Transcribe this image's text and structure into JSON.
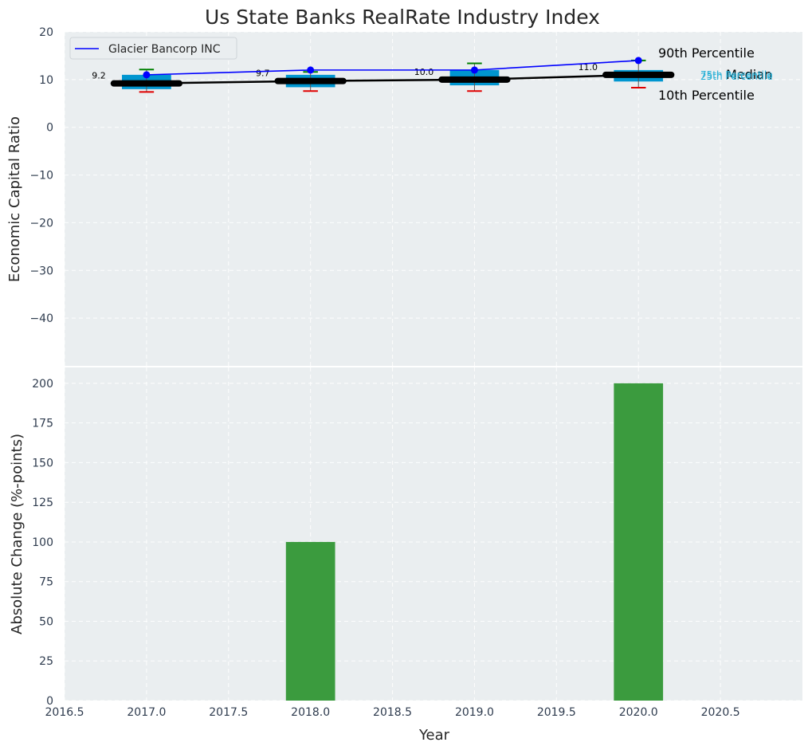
{
  "colors": {
    "panel_bg": "#eaeef0",
    "grid": "#ffffff",
    "box": "#0096d0",
    "median_line": "#000000",
    "glacier": "#0000ff",
    "whisker_high": "#008000",
    "whisker_low": "#e00000",
    "bars": "#3b9b3e",
    "iqr_label": "#27b0d6",
    "tick_text": "#2e3b4e",
    "title_text": "#262626"
  },
  "chart_data": [
    {
      "type": "box",
      "title": "Us State Banks RealRate Industry Index",
      "xlabel": "",
      "ylabel": "Economic Capital Ratio",
      "xlim": [
        2016.5,
        2021.0
      ],
      "ylim": [
        -50,
        20
      ],
      "yticks": [
        20,
        10,
        0,
        -10,
        -20,
        -30,
        -40
      ],
      "ytick_labels": [
        "20",
        "10",
        "0",
        "−10",
        "−20",
        "−30",
        "−40"
      ],
      "years": [
        2017,
        2018,
        2019,
        2020
      ],
      "percentile_10": [
        7.4,
        7.6,
        7.6,
        8.3
      ],
      "percentile_25": [
        8.0,
        8.4,
        8.8,
        9.6
      ],
      "median": [
        9.2,
        9.7,
        10.0,
        11.0
      ],
      "percentile_75": [
        11.0,
        11.0,
        12.0,
        12.0
      ],
      "percentile_90": [
        12.1,
        11.6,
        13.4,
        14.0
      ],
      "median_labels": [
        "9.2",
        "9.7",
        "10.0",
        "11.0"
      ],
      "series": [
        {
          "name": "Glacier Bancorp INC",
          "x": [
            2017,
            2018,
            2019,
            2020
          ],
          "values": [
            11.0,
            12.0,
            12.0,
            14.0
          ]
        }
      ],
      "legend": {
        "position": "upper-left",
        "entries": [
          "Glacier Bancorp INC"
        ]
      },
      "annotations": {
        "p90": "90th Percentile",
        "median": "Median",
        "p10": "10th Percentile",
        "p75": "75th Percentile",
        "p25": "25th Percentile"
      },
      "grid": true
    },
    {
      "type": "bar",
      "xlabel": "Year",
      "ylabel": "Absolute Change (%-points)",
      "xlim": [
        2016.5,
        2021.0
      ],
      "ylim": [
        0,
        210
      ],
      "yticks": [
        0,
        25,
        50,
        75,
        100,
        125,
        150,
        175,
        200
      ],
      "xticks": [
        2016.5,
        2017.0,
        2017.5,
        2018.0,
        2018.5,
        2019.0,
        2019.5,
        2020.0,
        2020.5
      ],
      "xtick_labels": [
        "2016.5",
        "2017.0",
        "2017.5",
        "2018.0",
        "2018.5",
        "2019.0",
        "2019.5",
        "2020.0",
        "2020.5"
      ],
      "x": [
        2018,
        2020
      ],
      "values": [
        100,
        200
      ],
      "bar_width": 0.3,
      "grid": true
    }
  ]
}
